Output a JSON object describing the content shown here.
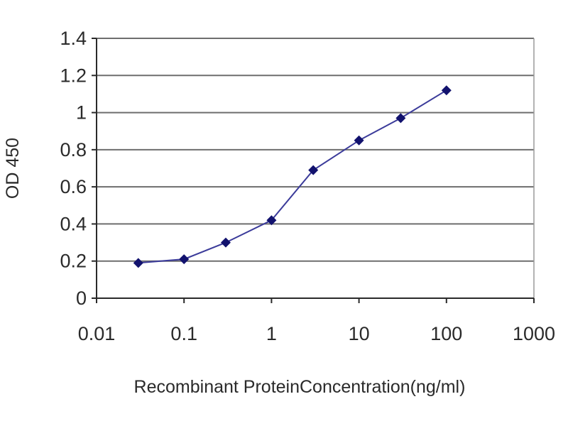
{
  "chart_data": {
    "type": "line",
    "title": "",
    "xlabel": "Recombinant  ProteinConcentration(ng/ml)",
    "ylabel": "OD 450",
    "x_scale": "log",
    "xlim": [
      0.01,
      1000
    ],
    "ylim": [
      0,
      1.4
    ],
    "x_tick_labels": [
      "0.01",
      "0.1",
      "1",
      "10",
      "100",
      "1000"
    ],
    "y_tick_labels": [
      "0",
      "0.2",
      "0.4",
      "0.6",
      "0.8",
      "1",
      "1.2",
      "1.4"
    ],
    "grid": "horizontal",
    "legend": "none",
    "series": [
      {
        "x": [
          0.03,
          0.1,
          0.3,
          1,
          3,
          10,
          30,
          100
        ],
        "y": [
          0.19,
          0.21,
          0.3,
          0.42,
          0.69,
          0.85,
          0.97,
          1.12
        ]
      }
    ],
    "colors": {
      "line": "#3b3b9a",
      "marker": "#12126e",
      "grid": "#6e6e6e",
      "plot_border": "#9a9a9a",
      "text": "#2a2a2a"
    }
  }
}
